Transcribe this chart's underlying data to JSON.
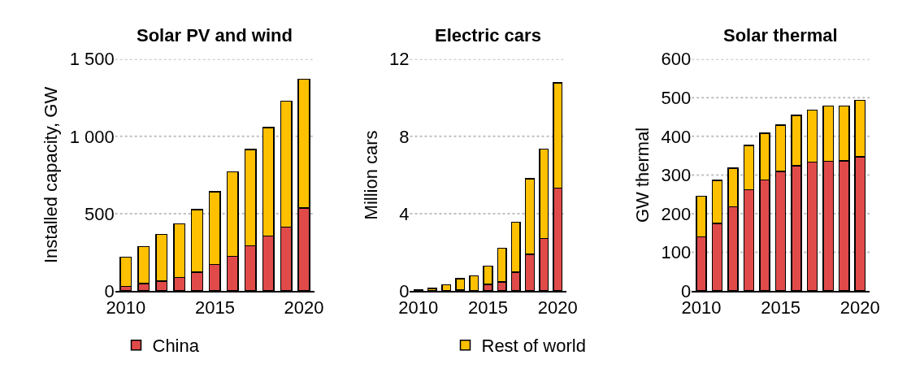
{
  "chart_data": [
    {
      "type": "bar",
      "title": "Solar PV and wind",
      "ylabel": "Installed capacity, GW",
      "stacked": true,
      "x": [
        2010,
        2011,
        2012,
        2013,
        2014,
        2015,
        2016,
        2017,
        2018,
        2019,
        2020
      ],
      "xlim": [
        2009.4,
        2020.6
      ],
      "xticks": [
        2010,
        2015,
        2020
      ],
      "ylim": [
        0,
        1500
      ],
      "yticks": [
        0,
        500,
        {
          "value": 1000,
          "label": "1 000"
        },
        {
          "value": 1500,
          "label": "1 500"
        }
      ],
      "grid": "y",
      "legend": "bottom",
      "series": [
        {
          "name": "China",
          "color": "#e04b4a",
          "values": [
            29,
            48,
            63,
            88,
            122,
            170,
            224,
            292,
            356,
            414,
            536
          ]
        },
        {
          "name": "Rest of world",
          "color": "#ffc000",
          "values": [
            189,
            239,
            303,
            347,
            403,
            473,
            546,
            622,
            701,
            814,
            834
          ]
        }
      ]
    },
    {
      "type": "bar",
      "title": "Electric cars",
      "ylabel": "Million cars",
      "stacked": true,
      "x": [
        2010,
        2011,
        2012,
        2013,
        2014,
        2015,
        2016,
        2017,
        2018,
        2019,
        2020
      ],
      "xlim": [
        2009.4,
        2020.6
      ],
      "xticks": [
        2010,
        2015,
        2020
      ],
      "ylim": [
        0,
        12
      ],
      "yticks": [
        0,
        4,
        8,
        12
      ],
      "grid": "y",
      "legend": "bottom",
      "series": [
        {
          "name": "China",
          "color": "#e04b4a",
          "values": [
            null,
            0.02,
            0.03,
            0.05,
            null,
            0.34,
            0.47,
            0.97,
            1.89,
            2.72,
            5.33
          ]
        },
        {
          "name": "Rest of world",
          "color": "#ffc000",
          "values": [
            0.04,
            0.11,
            0.28,
            0.59,
            0.78,
            0.95,
            1.73,
            2.59,
            3.92,
            4.62,
            5.45
          ]
        }
      ]
    },
    {
      "type": "bar",
      "title": "Solar thermal",
      "ylabel": "GW thermal",
      "stacked": true,
      "x": [
        2010,
        2011,
        2012,
        2013,
        2014,
        2015,
        2016,
        2017,
        2018,
        2019,
        2020
      ],
      "xlim": [
        2009.4,
        2020.6
      ],
      "xticks": [
        2010,
        2015,
        2020
      ],
      "ylim": [
        0,
        600
      ],
      "yticks": [
        0,
        100,
        200,
        300,
        400,
        500,
        600
      ],
      "grid": "y",
      "legend": "bottom",
      "series": [
        {
          "name": "China",
          "color": "#e04b4a",
          "values": [
            140,
            175,
            218,
            262,
            287,
            309,
            324,
            334,
            336,
            337,
            347
          ]
        },
        {
          "name": "Rest of world",
          "color": "#ffc000",
          "values": [
            105,
            111,
            100,
            115,
            121,
            120,
            130,
            134,
            143,
            142,
            146
          ]
        }
      ]
    }
  ]
}
